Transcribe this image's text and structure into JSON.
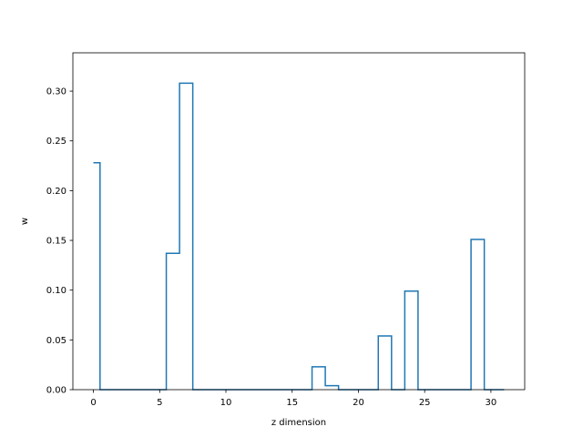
{
  "chart_data": {
    "type": "line",
    "title": "",
    "xlabel": "z dimension",
    "ylabel": "w",
    "xlim": [
      -1.55,
      32.55
    ],
    "ylim": [
      0.0,
      0.3385
    ],
    "xticks": [
      0,
      5,
      10,
      15,
      20,
      25,
      30
    ],
    "yticks": [
      0.0,
      0.05,
      0.1,
      0.15,
      0.2,
      0.25,
      0.3
    ],
    "ytick_labels": [
      "0.00",
      "0.05",
      "0.10",
      "0.15",
      "0.20",
      "0.25",
      "0.30"
    ],
    "step_where": "mid",
    "grid": false,
    "color": "#1f77b4",
    "x": [
      0,
      1,
      2,
      3,
      4,
      5,
      6,
      7,
      8,
      9,
      10,
      11,
      12,
      13,
      14,
      15,
      16,
      17,
      18,
      19,
      20,
      21,
      22,
      23,
      24,
      25,
      26,
      27,
      28,
      29,
      30,
      31
    ],
    "y": [
      0.228,
      0,
      0,
      0,
      0,
      0,
      0.137,
      0.308,
      0,
      0,
      0,
      0,
      0,
      0,
      0,
      0,
      0,
      0.023,
      0.004,
      0,
      0,
      0,
      0.054,
      0,
      0.099,
      0,
      0,
      0,
      0,
      0.151,
      0,
      0
    ]
  }
}
